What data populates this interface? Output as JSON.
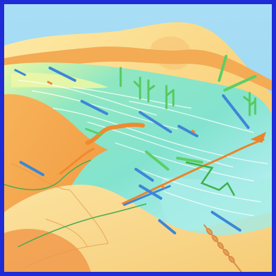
{
  "frame": {
    "border_color": "#1e2bd6"
  },
  "palette": {
    "sky": "#9fd8f2",
    "sand_light": "#fde9a8",
    "sand": "#f8d37e",
    "orange": "#f2a14a",
    "orange_dark": "#e2852d",
    "water_green": "#7fe3c0",
    "water_cyan": "#9ee9e6",
    "water_yellow": "#e9f7a6",
    "reed_green": "#4fc35a",
    "rod_blue": "#3d86d8"
  },
  "icons": {
    "reed": "reed-icon",
    "rod": "rod-icon",
    "spike": "spike-icon"
  }
}
